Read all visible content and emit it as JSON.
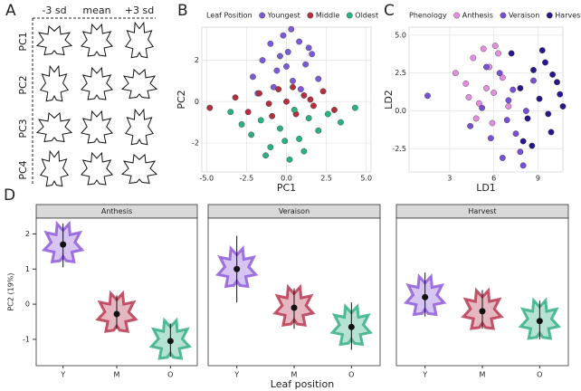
{
  "panel_labels": [
    "A",
    "B",
    "C",
    "D"
  ],
  "panel_a": {
    "columns": [
      "-3 sd",
      "mean",
      "+3 sd"
    ],
    "rows": [
      "PC1",
      "PC2",
      "PC3",
      "PC4"
    ]
  },
  "chart_data": [
    {
      "type": "scatter",
      "legend_title": "Leaf Position",
      "xlabel": "PC1",
      "ylabel": "PC2",
      "xlim": [
        -5.3,
        5.3
      ],
      "ylim": [
        -3.4,
        3.6
      ],
      "xticks": [
        {
          "value": -5,
          "label": "-5.0"
        },
        {
          "value": -2.5,
          "label": "-2.5"
        },
        {
          "value": 0,
          "label": "0.0"
        },
        {
          "value": 2.5,
          "label": "2.5"
        },
        {
          "value": 5,
          "label": "5.0"
        }
      ],
      "yticks": [
        -2,
        0,
        2
      ],
      "grid": true,
      "series": [
        {
          "name": "Youngest",
          "color": "#7b5ad6",
          "x": [
            -2.1,
            -1.5,
            -1.0,
            -0.6,
            -0.2,
            0.1,
            0.4,
            0.8,
            1.2,
            1.6,
            2.0,
            -0.8,
            0.3,
            0.9,
            -1.8,
            0.0,
            1.4,
            -0.4
          ],
          "values": [
            1.2,
            2.0,
            2.8,
            1.5,
            3.2,
            2.4,
            1.0,
            2.9,
            1.8,
            2.3,
            1.1,
            0.7,
            3.5,
            0.6,
            0.4,
            1.7,
            2.6,
            2.2
          ]
        },
        {
          "name": "Middle",
          "color": "#b0303f",
          "x": [
            -4.8,
            -3.2,
            -2.4,
            -1.7,
            -1.1,
            -0.5,
            0.0,
            0.6,
            1.1,
            1.7,
            2.3,
            3.0,
            -0.9,
            0.4,
            1.5
          ],
          "values": [
            -0.3,
            0.2,
            -0.5,
            0.4,
            -0.1,
            0.6,
            0.0,
            -0.6,
            0.3,
            -0.2,
            0.5,
            -0.4,
            -0.7,
            0.7,
            0.1
          ]
        },
        {
          "name": "Oldest",
          "color": "#2bb07f",
          "x": [
            -3.5,
            -2.8,
            -2.2,
            -1.6,
            -1.0,
            -0.4,
            0.2,
            0.8,
            1.4,
            2.0,
            2.6,
            3.4,
            4.3,
            -1.3,
            0.5,
            1.1,
            -0.1
          ],
          "values": [
            -0.5,
            -1.1,
            -1.6,
            -0.9,
            -2.2,
            -1.3,
            -2.8,
            -1.8,
            -0.8,
            -1.4,
            -0.6,
            -1.0,
            -0.3,
            -2.6,
            -0.4,
            -2.4,
            -1.9
          ]
        }
      ]
    },
    {
      "type": "scatter",
      "legend_title": "Phenology",
      "xlabel": "LD1",
      "ylabel": "LD2",
      "xlim": [
        0.24,
        10.7
      ],
      "ylim": [
        -4.03,
        5.53
      ],
      "xticks": [
        3,
        6,
        9
      ],
      "yticks": [
        {
          "value": -2.5,
          "label": "-2.5"
        },
        {
          "value": 0,
          "label": "0.0"
        },
        {
          "value": 2.5,
          "label": "2.5"
        },
        {
          "value": 5,
          "label": "5.0"
        }
      ],
      "grid": true,
      "series": [
        {
          "name": "Anthesis",
          "color": "#e28fe0",
          "x": [
            3.4,
            4.1,
            4.6,
            5.0,
            5.3,
            5.7,
            6.0,
            6.3,
            6.6,
            7.0,
            4.8,
            5.5,
            6.1,
            4.3,
            5.9
          ],
          "values": [
            2.5,
            1.8,
            3.5,
            0.5,
            4.1,
            2.9,
            1.2,
            3.8,
            2.2,
            0.3,
            -0.5,
            1.5,
            4.3,
            0.9,
            -0.8
          ]
        },
        {
          "name": "Veraison",
          "color": "#7650d6",
          "x": [
            1.5,
            4.4,
            5.2,
            5.8,
            6.4,
            6.9,
            7.3,
            7.8,
            8.2,
            8.7,
            6.6,
            7.5,
            5.5,
            8.0,
            7.0
          ],
          "values": [
            1.0,
            -1.0,
            0.2,
            -1.8,
            2.5,
            -0.6,
            1.4,
            -2.7,
            0.0,
            2.0,
            -3.1,
            -1.5,
            2.9,
            -3.6,
            0.7
          ]
        },
        {
          "name": "Harvest",
          "color": "#27178a",
          "x": [
            7.2,
            7.8,
            8.3,
            8.7,
            9.1,
            9.5,
            9.9,
            10.3,
            10.7,
            8.0,
            9.3,
            10.0,
            8.6,
            9.7,
            10.5
          ],
          "values": [
            3.8,
            1.5,
            -0.5,
            2.7,
            0.8,
            3.2,
            -1.4,
            1.9,
            0.3,
            -2.0,
            4.0,
            2.4,
            -2.3,
            -0.2,
            1.1
          ]
        }
      ]
    },
    {
      "type": "pointrange",
      "ylabel": "PC2 (19%)",
      "xlabel": "Leaf position",
      "categories": [
        "Y",
        "M",
        "O"
      ],
      "colors": [
        "#8a55d8",
        "#b5304a",
        "#2dab82"
      ],
      "ylim": [
        -1.75,
        2.45
      ],
      "yticks": [
        -1,
        0,
        1,
        2
      ],
      "facets": [
        {
          "title": "Anthesis",
          "values": [
            1.7,
            -0.28,
            -1.05
          ],
          "low": [
            1.05,
            -0.7,
            -1.5
          ],
          "high": [
            2.3,
            0.25,
            -0.55
          ]
        },
        {
          "title": "Veraison",
          "values": [
            1.0,
            -0.1,
            -0.65
          ],
          "low": [
            0.05,
            -0.7,
            -1.3
          ],
          "high": [
            1.95,
            0.45,
            0.05
          ]
        },
        {
          "title": "Harvest",
          "values": [
            0.2,
            -0.2,
            -0.48
          ],
          "low": [
            -0.35,
            -0.7,
            -1.0
          ],
          "high": [
            0.9,
            0.4,
            0.1
          ]
        }
      ]
    }
  ]
}
